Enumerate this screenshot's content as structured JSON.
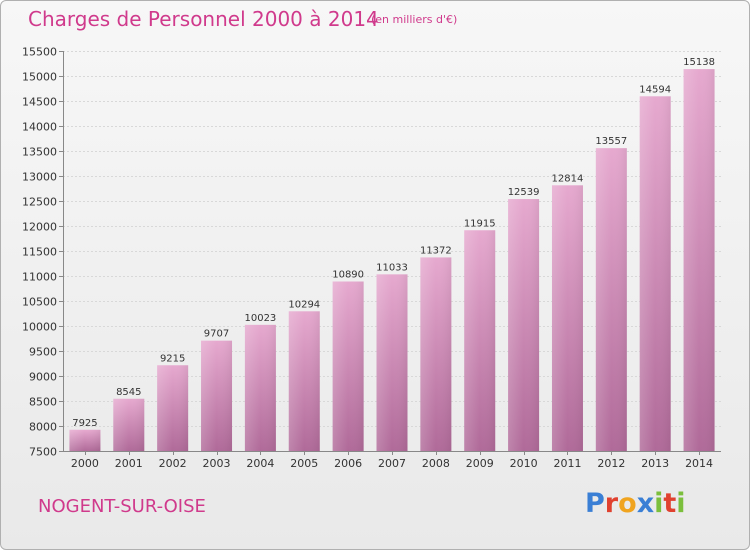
{
  "header": {
    "title": "Charges de Personnel 2000 à 2014",
    "subtitle": "(en milliers d'€)"
  },
  "footer": {
    "city": "NOGENT-SUR-OISE",
    "logo_text": "Proxiti",
    "logo_colors": [
      "#3a7fd5",
      "#e0412f",
      "#f0a41f",
      "#3a7fd5",
      "#7bbf3c",
      "#e0412f",
      "#7bbf3c"
    ]
  },
  "colors": {
    "accent": "#d03a8c",
    "bar_top": "#e6a9cf",
    "bar_bottom": "#b06a99"
  },
  "chart_data": {
    "type": "bar",
    "title": "Charges de Personnel 2000 à 2014",
    "subtitle": "(en milliers d'€)",
    "categories": [
      "2000",
      "2001",
      "2002",
      "2003",
      "2004",
      "2005",
      "2006",
      "2007",
      "2008",
      "2009",
      "2010",
      "2011",
      "2012",
      "2013",
      "2014"
    ],
    "values": [
      7925,
      8545,
      9215,
      9707,
      10023,
      10294,
      10890,
      11033,
      11372,
      11915,
      12539,
      12814,
      13557,
      14594,
      15138
    ],
    "ylim": [
      7500,
      15500
    ],
    "yticks": [
      "7500",
      "8000",
      "8500",
      "9000",
      "9500",
      "10000",
      "10500",
      "11000",
      "11500",
      "12000",
      "12500",
      "13000",
      "13500",
      "14000",
      "14500",
      "15000",
      "15500"
    ],
    "grid": true,
    "legend": "none"
  }
}
